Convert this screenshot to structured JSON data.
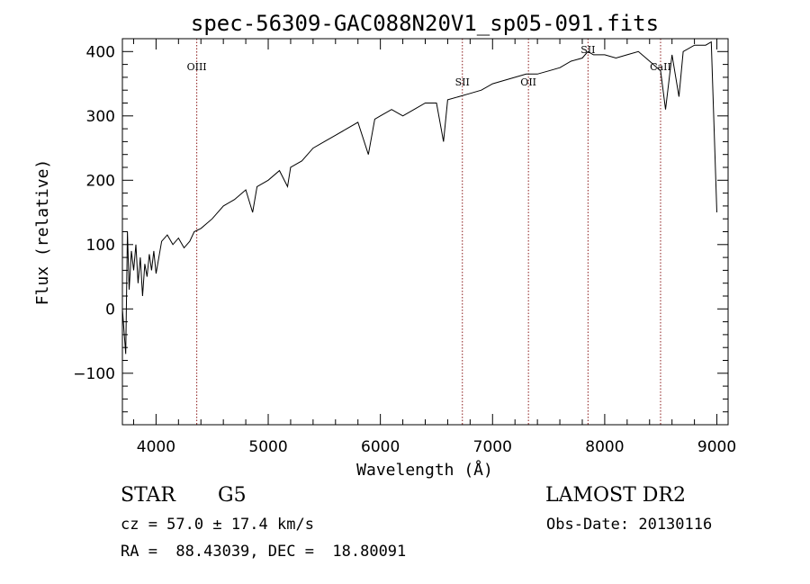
{
  "chart_data": {
    "type": "line",
    "title": "spec-56309-GAC088N20V1_sp05-091.fits",
    "xlabel": "Wavelength (Å)",
    "ylabel": "Flux (relative)",
    "xlim": [
      3700,
      9100
    ],
    "ylim": [
      -180,
      420
    ],
    "xticks": [
      4000,
      5000,
      6000,
      7000,
      8000,
      9000
    ],
    "yticks": [
      -100,
      0,
      100,
      200,
      300,
      400
    ],
    "grid": false,
    "series": [
      {
        "x": [
          3700,
          3730,
          3745,
          3760,
          3780,
          3800,
          3820,
          3840,
          3860,
          3880,
          3900,
          3920,
          3940,
          3960,
          3980,
          4000,
          4050,
          4100,
          4150,
          4200,
          4250,
          4300,
          4340,
          4400,
          4500,
          4600,
          4700,
          4800,
          4861,
          4900,
          5000,
          5100,
          5172,
          5200,
          5300,
          5400,
          5500,
          5600,
          5700,
          5800,
          5893,
          5950,
          6000,
          6100,
          6200,
          6300,
          6400,
          6500,
          6563,
          6600,
          6700,
          6800,
          6900,
          7000,
          7100,
          7200,
          7300,
          7400,
          7500,
          7600,
          7700,
          7800,
          7850,
          7900,
          8000,
          8100,
          8200,
          8300,
          8400,
          8498,
          8542,
          8600,
          8662,
          8700,
          8800,
          8900,
          8950,
          9000
        ],
        "y": [
          0,
          -70,
          120,
          30,
          90,
          60,
          100,
          40,
          80,
          20,
          70,
          50,
          85,
          60,
          90,
          55,
          105,
          115,
          100,
          110,
          95,
          105,
          120,
          125,
          140,
          160,
          170,
          185,
          150,
          190,
          200,
          215,
          190,
          220,
          230,
          250,
          260,
          270,
          280,
          290,
          240,
          295,
          300,
          310,
          300,
          310,
          320,
          320,
          260,
          325,
          330,
          335,
          340,
          350,
          355,
          360,
          365,
          365,
          370,
          375,
          385,
          390,
          400,
          395,
          395,
          390,
          395,
          400,
          385,
          370,
          310,
          395,
          330,
          400,
          410,
          410,
          415,
          150
        ]
      }
    ],
    "spectral_lines": [
      {
        "label": "OIII",
        "x": 4363
      },
      {
        "label": "SII",
        "x": 6731
      },
      {
        "label": "OII",
        "x": 7320
      },
      {
        "label": "SII",
        "x": 7851
      },
      {
        "label": "CaII",
        "x": 8498
      }
    ]
  },
  "info": {
    "object_class": "STAR",
    "subclass": "G5",
    "survey": "LAMOST DR2",
    "cz": "cz = 57.0 ± 17.4 km/s",
    "obs_date": "Obs-Date: 20130116",
    "coords": "RA =  88.43039, DEC =  18.80091"
  },
  "colors": {
    "spectrum": "#000000",
    "line_markers": "#8b1a1a",
    "axes": "#000000"
  }
}
